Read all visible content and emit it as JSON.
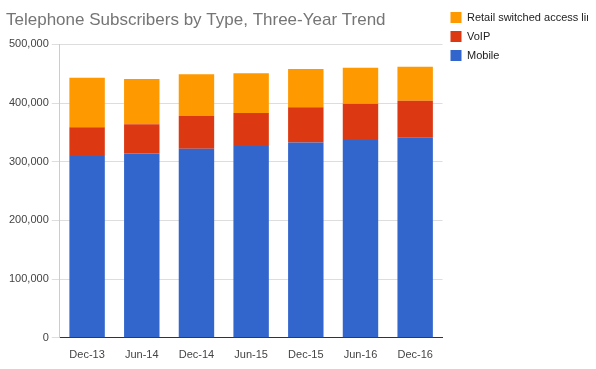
{
  "chart_data": {
    "type": "bar",
    "title": "Telephone Subscribers by Type, Three-Year Trend",
    "categories": [
      "Dec-13",
      "Jun-14",
      "Dec-14",
      "Jun-15",
      "Dec-15",
      "Jun-16",
      "Dec-16"
    ],
    "series": [
      {
        "name": "Mobile",
        "color": "#3366cc",
        "values": [
          310000,
          314000,
          322000,
          327000,
          333000,
          337000,
          341000
        ]
      },
      {
        "name": "VoIP",
        "color": "#dc3912",
        "values": [
          49000,
          50000,
          56000,
          56000,
          60000,
          62000,
          63000
        ]
      },
      {
        "name": "Retail switched access lines",
        "color": "#ff9900",
        "values": [
          84000,
          77000,
          71000,
          68000,
          65000,
          61000,
          58000
        ]
      }
    ],
    "ylim": [
      0,
      500000
    ],
    "yticks": [
      0,
      {
        "value": 100000,
        "label": "100,000"
      },
      {
        "value": 200000,
        "label": "200,000"
      },
      {
        "value": 300000,
        "label": "300,000"
      },
      {
        "value": 400000,
        "label": "400,000"
      },
      {
        "value": 500000,
        "label": "500,000"
      }
    ],
    "grid": true,
    "stacked": true,
    "legend": "right"
  }
}
